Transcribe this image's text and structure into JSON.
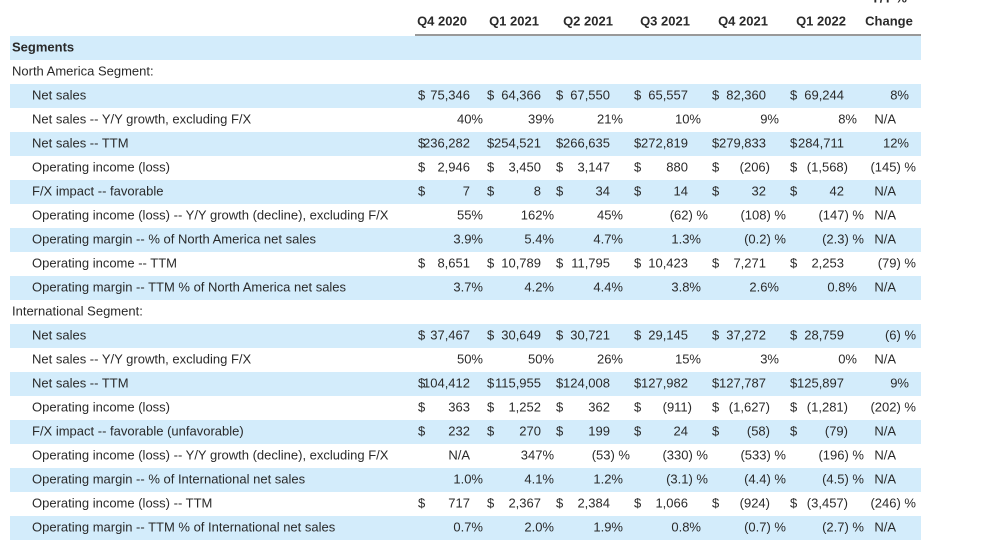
{
  "header": {
    "top_label": "Y/Y %",
    "columns": [
      "Q4 2020",
      "Q1 2021",
      "Q2 2021",
      "Q3 2021",
      "Q4 2021",
      "Q1 2022",
      "Change"
    ]
  },
  "section_title": "Segments",
  "segments": [
    {
      "title": "North America Segment:",
      "rows": [
        {
          "label": "Net sales",
          "cells": [
            [
              "$",
              "75,346"
            ],
            [
              "$",
              "64,366"
            ],
            [
              "$",
              "67,550"
            ],
            [
              "$",
              "65,557"
            ],
            [
              "$",
              "82,360"
            ],
            [
              "$",
              "69,244"
            ]
          ],
          "change": "8%"
        },
        {
          "label": "Net sales -- Y/Y growth, excluding F/X",
          "cells": [
            [
              "40%"
            ],
            [
              "39%"
            ],
            [
              "21%"
            ],
            [
              "10%"
            ],
            [
              "9%"
            ],
            [
              "8%"
            ]
          ],
          "change": "N/A"
        },
        {
          "label": "Net sales -- TTM",
          "cells": [
            [
              "$",
              "236,282"
            ],
            [
              "$",
              "254,521"
            ],
            [
              "$",
              "266,635"
            ],
            [
              "$",
              "272,819"
            ],
            [
              "$",
              "279,833"
            ],
            [
              "$",
              "284,711"
            ]
          ],
          "change": "12%"
        },
        {
          "label": "Operating income (loss)",
          "cells": [
            [
              "$",
              "2,946"
            ],
            [
              "$",
              "3,450"
            ],
            [
              "$",
              "3,147"
            ],
            [
              "$",
              "880"
            ],
            [
              "$",
              "(206)"
            ],
            [
              "$",
              "(1,568)"
            ]
          ],
          "change": "(145) %"
        },
        {
          "label": "F/X impact -- favorable",
          "cells": [
            [
              "$",
              "7"
            ],
            [
              "$",
              "8"
            ],
            [
              "$",
              "34"
            ],
            [
              "$",
              "14"
            ],
            [
              "$",
              "32"
            ],
            [
              "$",
              "42"
            ]
          ],
          "change": "N/A"
        },
        {
          "label": "Operating income (loss) -- Y/Y growth (decline), excluding F/X",
          "cells": [
            [
              "55%"
            ],
            [
              "162%"
            ],
            [
              "45%"
            ],
            [
              "(62) %"
            ],
            [
              "(108) %"
            ],
            [
              "(147) %"
            ]
          ],
          "change": "N/A"
        },
        {
          "label": "Operating margin -- % of North America net sales",
          "cells": [
            [
              "3.9%"
            ],
            [
              "5.4%"
            ],
            [
              "4.7%"
            ],
            [
              "1.3%"
            ],
            [
              "(0.2) %"
            ],
            [
              "(2.3) %"
            ]
          ],
          "change": "N/A"
        },
        {
          "label": "Operating income -- TTM",
          "cells": [
            [
              "$",
              "8,651"
            ],
            [
              "$",
              "10,789"
            ],
            [
              "$",
              "11,795"
            ],
            [
              "$",
              "10,423"
            ],
            [
              "$",
              "7,271"
            ],
            [
              "$",
              "2,253"
            ]
          ],
          "change": "(79) %"
        },
        {
          "label": "Operating margin -- TTM % of North America net sales",
          "cells": [
            [
              "3.7%"
            ],
            [
              "4.2%"
            ],
            [
              "4.4%"
            ],
            [
              "3.8%"
            ],
            [
              "2.6%"
            ],
            [
              "0.8%"
            ]
          ],
          "change": "N/A"
        }
      ]
    },
    {
      "title": "International Segment:",
      "rows": [
        {
          "label": "Net sales",
          "cells": [
            [
              "$",
              "37,467"
            ],
            [
              "$",
              "30,649"
            ],
            [
              "$",
              "30,721"
            ],
            [
              "$",
              "29,145"
            ],
            [
              "$",
              "37,272"
            ],
            [
              "$",
              "28,759"
            ]
          ],
          "change": "(6) %"
        },
        {
          "label": "Net sales -- Y/Y growth, excluding F/X",
          "cells": [
            [
              "50%"
            ],
            [
              "50%"
            ],
            [
              "26%"
            ],
            [
              "15%"
            ],
            [
              "3%"
            ],
            [
              "0%"
            ]
          ],
          "change": "N/A"
        },
        {
          "label": "Net sales -- TTM",
          "cells": [
            [
              "$",
              "104,412"
            ],
            [
              "$",
              "115,955"
            ],
            [
              "$",
              "124,008"
            ],
            [
              "$",
              "127,982"
            ],
            [
              "$",
              "127,787"
            ],
            [
              "$",
              "125,897"
            ]
          ],
          "change": "9%"
        },
        {
          "label": "Operating income (loss)",
          "cells": [
            [
              "$",
              "363"
            ],
            [
              "$",
              "1,252"
            ],
            [
              "$",
              "362"
            ],
            [
              "$",
              "(911)"
            ],
            [
              "$",
              "(1,627)"
            ],
            [
              "$",
              "(1,281)"
            ]
          ],
          "change": "(202) %"
        },
        {
          "label": "F/X impact -- favorable (unfavorable)",
          "cells": [
            [
              "$",
              "232"
            ],
            [
              "$",
              "270"
            ],
            [
              "$",
              "199"
            ],
            [
              "$",
              "24"
            ],
            [
              "$",
              "(58)"
            ],
            [
              "$",
              "(79)"
            ]
          ],
          "change": "N/A"
        },
        {
          "label": "Operating income (loss) -- Y/Y growth (decline), excluding F/X",
          "cells": [
            [
              "N/A"
            ],
            [
              "347%"
            ],
            [
              "(53) %"
            ],
            [
              "(330) %"
            ],
            [
              "(533) %"
            ],
            [
              "(196) %"
            ]
          ],
          "change": "N/A"
        },
        {
          "label": "Operating margin -- % of International net sales",
          "cells": [
            [
              "1.0%"
            ],
            [
              "4.1%"
            ],
            [
              "1.2%"
            ],
            [
              "(3.1) %"
            ],
            [
              "(4.4) %"
            ],
            [
              "(4.5) %"
            ]
          ],
          "change": "N/A"
        },
        {
          "label": "Operating income (loss) -- TTM",
          "cells": [
            [
              "$",
              "717"
            ],
            [
              "$",
              "2,367"
            ],
            [
              "$",
              "2,384"
            ],
            [
              "$",
              "1,066"
            ],
            [
              "$",
              "(924)"
            ],
            [
              "$",
              "(3,457)"
            ]
          ],
          "change": "(246) %"
        },
        {
          "label": "Operating margin -- TTM % of International net sales",
          "cells": [
            [
              "0.7%"
            ],
            [
              "2.0%"
            ],
            [
              "1.9%"
            ],
            [
              "0.8%"
            ],
            [
              "(0.7) %"
            ],
            [
              "(2.7) %"
            ]
          ],
          "change": "N/A"
        }
      ]
    }
  ]
}
